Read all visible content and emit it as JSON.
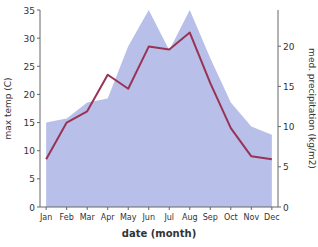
{
  "chart_data": {
    "type": "line",
    "x_label": "date (month)",
    "y_label": "max temp (C)",
    "y2_label": "med. precipitation (kg/m2)",
    "categories": [
      "Jan",
      "Feb",
      "Mar",
      "Apr",
      "May",
      "Jun",
      "Jul",
      "Aug",
      "Sep",
      "Oct",
      "Nov",
      "Dec"
    ],
    "series": [
      {
        "type": "area",
        "axis": "y2",
        "color": "#b8bfe8",
        "values": [
          10.5,
          11.0,
          13.0,
          13.5,
          20.0,
          24.5,
          19.5,
          24.5,
          18.5,
          13.0,
          10.0,
          9.0
        ]
      },
      {
        "type": "line",
        "color": "#993355",
        "values": [
          8.5,
          15.0,
          17.0,
          23.5,
          21.0,
          28.5,
          28.0,
          31.0,
          22.0,
          14.0,
          9.0,
          8.5
        ]
      }
    ],
    "ylim": [
      0,
      35
    ],
    "yticks": [
      0,
      5,
      10,
      15,
      20,
      25,
      30,
      35
    ],
    "y2lim": [
      0,
      24.5
    ],
    "y2ticks": [
      0,
      5,
      10,
      15,
      20
    ],
    "grid": false
  }
}
